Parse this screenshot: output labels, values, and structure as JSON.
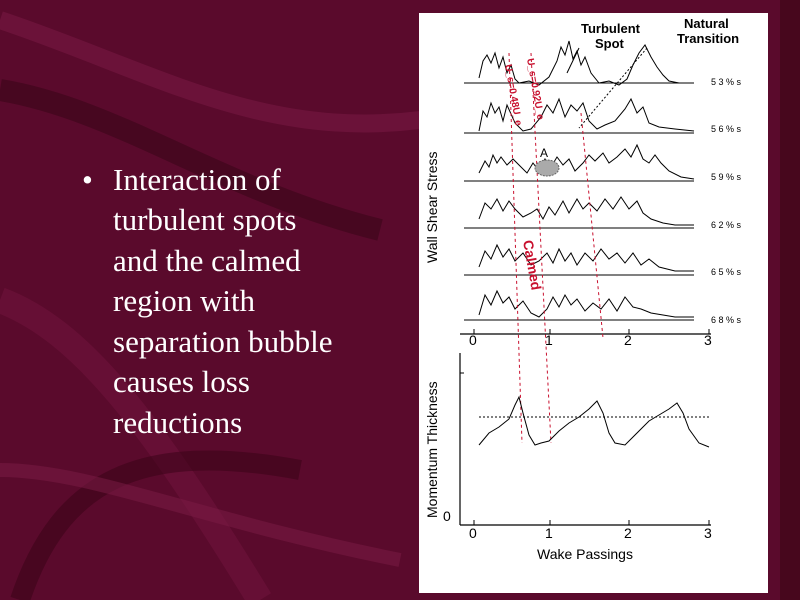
{
  "slide": {
    "bullet_marker": "•",
    "bullet_lines": [
      "Interaction of",
      "turbulent spots",
      "and the calmed",
      "region with",
      "separation bubble",
      "causes loss",
      "reductions"
    ]
  },
  "figure": {
    "upper_ylabel": "Wall Shear Stress",
    "lower_ylabel": "Momentum Thickness",
    "xlabel": "Wake Passings",
    "x_ticks": [
      "0",
      "1",
      "2",
      "3"
    ],
    "lower_y_tick_zero": "0",
    "annotation_turbulent": [
      "Turbulent",
      "Spot"
    ],
    "annotation_natural": [
      "Natural",
      "Transition"
    ],
    "annotation_a": "A",
    "annotation_calmed": "Calmed",
    "red_label_1": "U_s=0.92U_e",
    "red_label_2": "U_s=0.48U_e",
    "station_labels": [
      "5 3 % s",
      "5 6 % s",
      "5 9 % s",
      "6 2 % s",
      "6 5 % s",
      "6 8 % s"
    ],
    "colors": {
      "background": "#5a0a2c",
      "accent_red": "#c8102e"
    }
  }
}
